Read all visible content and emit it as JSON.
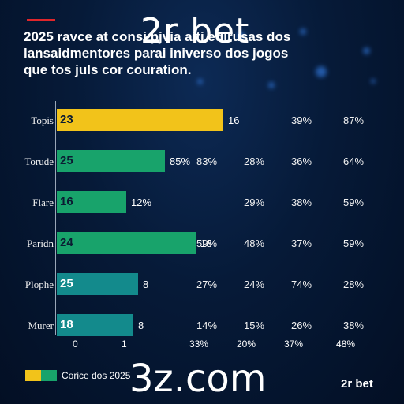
{
  "header": {
    "lines": [
      "2025 ravce at consi pjvia  aiti edirusas dos",
      "lansaidmentores parai iniverso dos jogos",
      "que tos juls cor couration."
    ]
  },
  "brand": {
    "top": "2r bet",
    "bottom": "3z.com",
    "corner": "2r bet"
  },
  "legend": {
    "label": "Corice dos 2025",
    "colors": [
      "#f2c31a",
      "#18a36b"
    ]
  },
  "chart_data": {
    "type": "bar",
    "orientation": "horizontal",
    "categories": [
      "Topis",
      "Torude",
      "Flare",
      "Paridn",
      "Plophe",
      "Murer"
    ],
    "values": [
      23,
      25,
      16,
      24,
      25,
      18
    ],
    "bar_colors": [
      "#f2c31a",
      "#18a36b",
      "#18a36b",
      "#18a36b",
      "#138a8c",
      "#138a8c"
    ],
    "after_bar_labels": [
      "16",
      "85%",
      "12%",
      "18",
      "8",
      "8"
    ],
    "columns": [
      [
        "",
        "83%",
        "",
        "59%",
        "27%",
        "14%"
      ],
      [
        "",
        "28%",
        "29%",
        "48%",
        "24%",
        "15%"
      ],
      [
        "39%",
        "36%",
        "38%",
        "37%",
        "74%",
        "26%"
      ],
      [
        "87%",
        "64%",
        "59%",
        "59%",
        "28%",
        "38%"
      ]
    ],
    "x_ticks": [
      "0",
      "1"
    ],
    "bottom_row": [
      "33%",
      "20%",
      "37%",
      "48%"
    ],
    "xlim": [
      0,
      25
    ]
  }
}
